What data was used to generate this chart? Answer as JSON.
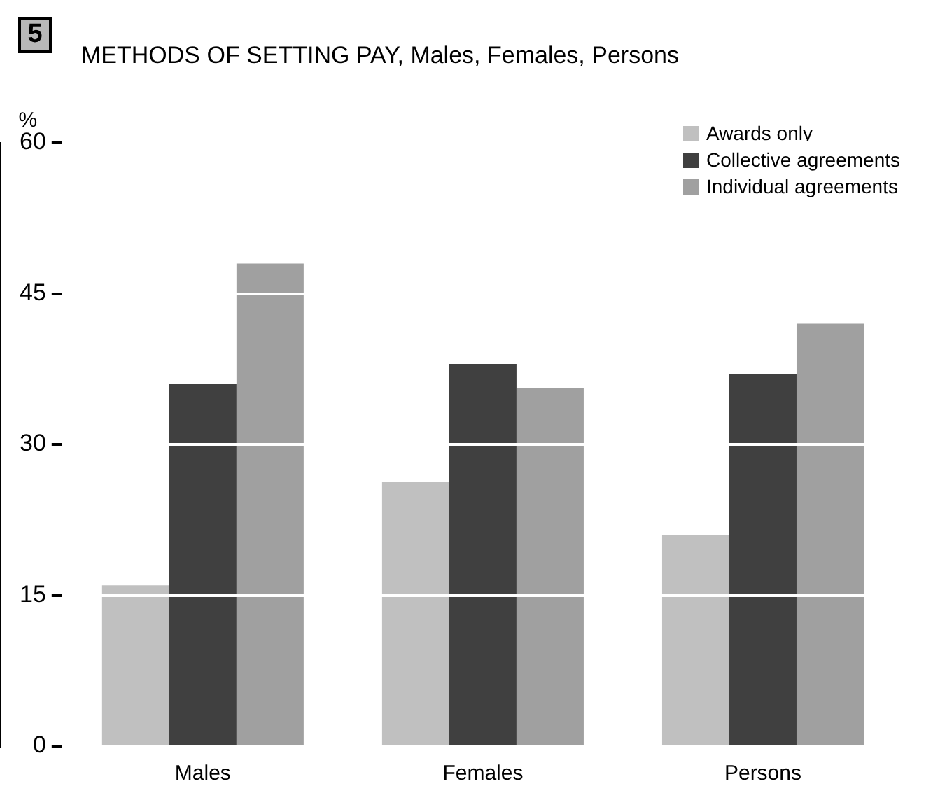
{
  "chart_data": {
    "type": "bar",
    "title": "METHODS OF SETTING PAY, Males, Females, Persons",
    "ylabel": "%",
    "annotations": [
      "5"
    ],
    "categories": [
      "Males",
      "Females",
      "Persons"
    ],
    "series": [
      {
        "name": "Awards only",
        "color": "#c0c0c0",
        "values": [
          16,
          26.3,
          21
        ]
      },
      {
        "name": "Collective agreements",
        "color": "#404040",
        "values": [
          36,
          38,
          37
        ]
      },
      {
        "name": "Individual agreements",
        "color": "#a0a0a0",
        "values": [
          48,
          35.6,
          42
        ]
      }
    ],
    "ylim": [
      0,
      60
    ],
    "yticks": [
      0,
      15,
      30,
      45,
      60
    ],
    "grid": "y",
    "legend": "top right"
  }
}
